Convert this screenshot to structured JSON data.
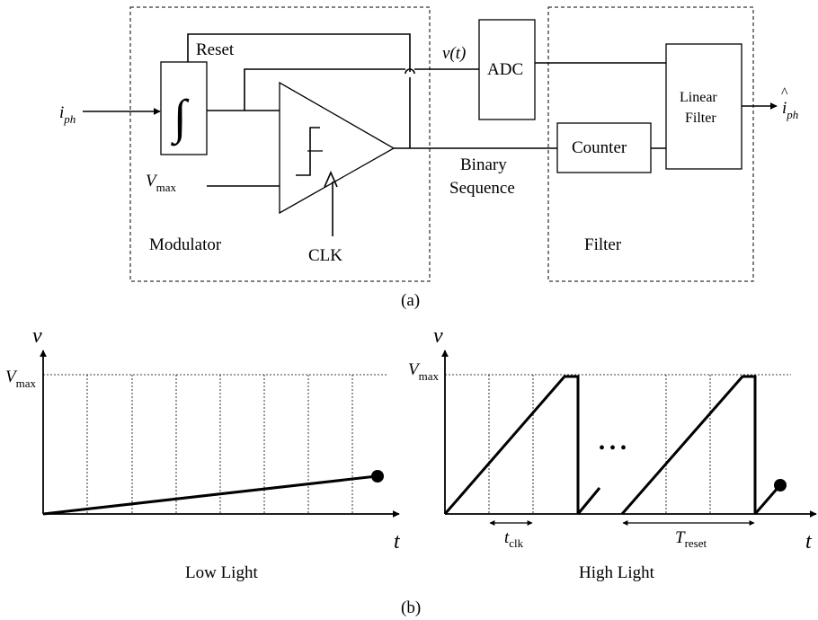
{
  "top": {
    "signals": {
      "i": "i",
      "i_sub": "ph",
      "v": "V",
      "v_sub": "max",
      "vt": "v(t)",
      "out_i": "i",
      "out_sub": "ph"
    },
    "blocks": {
      "reset": "Reset",
      "adc": "ADC",
      "counter": "Counter",
      "linear_filter_1": "Linear",
      "linear_filter_2": "Filter",
      "clk": "CLK",
      "binary_1": "Binary",
      "binary_2": "Sequence",
      "modulator": "Modulator",
      "filter": "Filter"
    },
    "caption": "(a)"
  },
  "bottom": {
    "left": {
      "v_axis": "v",
      "t_axis": "t",
      "vmax": "V",
      "vmax_sub": "max",
      "title": "Low Light"
    },
    "right": {
      "v_axis": "v",
      "t_axis": "t",
      "vmax": "V",
      "vmax_sub": "max",
      "dots": "• • •",
      "tclk": "t",
      "tclk_sub": "clk",
      "treset": "T",
      "treset_sub": "reset",
      "title": "High Light"
    },
    "caption": "(b)"
  }
}
